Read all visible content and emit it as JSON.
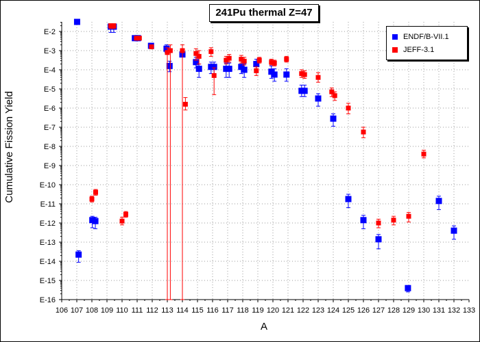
{
  "chart_data": {
    "type": "scatter",
    "title": "241Pu thermal Z=47",
    "xlabel": "A",
    "ylabel": "Cumulative Fission Yield",
    "xlim": [
      106,
      133
    ],
    "ylim_log10": [
      -16,
      -1.5
    ],
    "y_scale": "log",
    "grid": true,
    "legend_position": "top-right",
    "x_ticks": [
      "106",
      "107",
      "108",
      "109",
      "110",
      "111",
      "112",
      "113",
      "114",
      "115",
      "116",
      "117",
      "118",
      "119",
      "120",
      "121",
      "122",
      "123",
      "124",
      "125",
      "126",
      "127",
      "128",
      "129",
      "130",
      "131",
      "132",
      "133"
    ],
    "y_ticks": [
      "E-2",
      "E-3",
      "E-4",
      "E-5",
      "E-6",
      "E-7",
      "E-8",
      "E-9",
      "E-10",
      "E-11",
      "E-12",
      "E-13",
      "E-14",
      "E-15",
      "E-16"
    ],
    "series": [
      {
        "name": "ENDF/B-VII.1",
        "color": "#0000ff",
        "points": [
          {
            "x": 107.02,
            "y": -1.45,
            "lo": -1.45,
            "hi": -1.45
          },
          {
            "x": 107.12,
            "y": -13.65,
            "lo": -14.05,
            "hi": -13.45
          },
          {
            "x": 108.03,
            "y": -11.85,
            "lo": -12.25,
            "hi": -11.65
          },
          {
            "x": 108.23,
            "y": -11.9,
            "lo": -12.3,
            "hi": -11.7
          },
          {
            "x": 109.25,
            "y": -1.75,
            "lo": -2.05,
            "hi": -1.65
          },
          {
            "x": 109.45,
            "y": -1.75,
            "lo": -2.05,
            "hi": -1.65
          },
          {
            "x": 110.85,
            "y": -2.35,
            "lo": -2.45,
            "hi": -2.25
          },
          {
            "x": 111.05,
            "y": -2.35,
            "lo": -2.45,
            "hi": -2.25
          },
          {
            "x": 111.92,
            "y": -2.75,
            "lo": -2.85,
            "hi": -2.65
          },
          {
            "x": 112.95,
            "y": -2.9,
            "lo": -3.1,
            "hi": -2.7
          },
          {
            "x": 113.15,
            "y": -3.8,
            "lo": -4.1,
            "hi": -3.55
          },
          {
            "x": 114.0,
            "y": -3.2,
            "lo": -16,
            "hi": -2.9
          },
          {
            "x": 114.9,
            "y": -3.6,
            "lo": -3.9,
            "hi": -3.35
          },
          {
            "x": 115.1,
            "y": -3.95,
            "lo": -4.4,
            "hi": -3.7
          },
          {
            "x": 115.9,
            "y": -3.85,
            "lo": -4.2,
            "hi": -3.6
          },
          {
            "x": 116.1,
            "y": -3.85,
            "lo": -4.2,
            "hi": -3.6
          },
          {
            "x": 116.9,
            "y": -3.95,
            "lo": -4.4,
            "hi": -3.65
          },
          {
            "x": 117.1,
            "y": -3.95,
            "lo": -4.4,
            "hi": -3.65
          },
          {
            "x": 117.9,
            "y": -3.85,
            "lo": -4.2,
            "hi": -3.55
          },
          {
            "x": 118.1,
            "y": -4.0,
            "lo": -4.4,
            "hi": -3.7
          },
          {
            "x": 118.9,
            "y": -3.7,
            "lo": -4.0,
            "hi": -3.45
          },
          {
            "x": 119.9,
            "y": -4.1,
            "lo": -4.45,
            "hi": -3.8
          },
          {
            "x": 120.1,
            "y": -4.25,
            "lo": -4.6,
            "hi": -3.95
          },
          {
            "x": 120.9,
            "y": -4.25,
            "lo": -4.6,
            "hi": -3.95
          },
          {
            "x": 121.9,
            "y": -5.1,
            "lo": -5.4,
            "hi": -4.8
          },
          {
            "x": 122.1,
            "y": -5.1,
            "lo": -5.4,
            "hi": -4.8
          },
          {
            "x": 123.0,
            "y": -5.5,
            "lo": -5.9,
            "hi": -5.25
          },
          {
            "x": 124.0,
            "y": -6.55,
            "lo": -6.95,
            "hi": -6.3
          },
          {
            "x": 125.0,
            "y": -10.75,
            "lo": -11.2,
            "hi": -10.5
          },
          {
            "x": 126.0,
            "y": -11.85,
            "lo": -12.3,
            "hi": -11.6
          },
          {
            "x": 127.0,
            "y": -12.85,
            "lo": -13.35,
            "hi": -12.6
          },
          {
            "x": 128.95,
            "y": -15.4,
            "lo": -15.6,
            "hi": -15.3
          },
          {
            "x": 131.0,
            "y": -10.85,
            "lo": -11.3,
            "hi": -10.6
          },
          {
            "x": 132.0,
            "y": -12.4,
            "lo": -12.85,
            "hi": -12.15
          }
        ]
      },
      {
        "name": "JEFF-3.1",
        "color": "#ff0000",
        "points": [
          {
            "x": 108.0,
            "y": -10.75,
            "lo": -10.9,
            "hi": -10.6
          },
          {
            "x": 108.25,
            "y": -10.4,
            "lo": -10.55,
            "hi": -10.25
          },
          {
            "x": 109.25,
            "y": -1.7,
            "lo": -1.85,
            "hi": -1.6
          },
          {
            "x": 109.45,
            "y": -1.7,
            "lo": -1.85,
            "hi": -1.6
          },
          {
            "x": 110.0,
            "y": -11.9,
            "lo": -12.1,
            "hi": -11.7
          },
          {
            "x": 110.25,
            "y": -11.55,
            "lo": -11.7,
            "hi": -11.4
          },
          {
            "x": 110.95,
            "y": -2.35,
            "lo": -2.45,
            "hi": -2.25
          },
          {
            "x": 111.15,
            "y": -2.35,
            "lo": -2.45,
            "hi": -2.25
          },
          {
            "x": 111.95,
            "y": -2.8,
            "lo": -2.9,
            "hi": -2.7
          },
          {
            "x": 113.0,
            "y": -3.1,
            "lo": -16,
            "hi": -2.85
          },
          {
            "x": 113.2,
            "y": -3.0,
            "lo": -16,
            "hi": -2.7
          },
          {
            "x": 114.0,
            "y": -3.0,
            "lo": -16,
            "hi": -2.7
          },
          {
            "x": 114.2,
            "y": -5.8,
            "lo": -6.1,
            "hi": -5.45
          },
          {
            "x": 114.9,
            "y": -3.15,
            "lo": -3.5,
            "hi": -2.9
          },
          {
            "x": 115.1,
            "y": -3.3,
            "lo": -3.7,
            "hi": -3.0
          },
          {
            "x": 115.9,
            "y": -3.05,
            "lo": -3.3,
            "hi": -2.85
          },
          {
            "x": 116.1,
            "y": -4.3,
            "lo": -5.3,
            "hi": -3.9
          },
          {
            "x": 116.9,
            "y": -3.5,
            "lo": -3.7,
            "hi": -3.3
          },
          {
            "x": 117.1,
            "y": -3.4,
            "lo": -3.6,
            "hi": -3.2
          },
          {
            "x": 117.9,
            "y": -3.45,
            "lo": -3.65,
            "hi": -3.25
          },
          {
            "x": 118.1,
            "y": -3.55,
            "lo": -3.75,
            "hi": -3.35
          },
          {
            "x": 118.9,
            "y": -4.05,
            "lo": -4.3,
            "hi": -3.85
          },
          {
            "x": 119.1,
            "y": -3.5,
            "lo": -3.65,
            "hi": -3.35
          },
          {
            "x": 119.9,
            "y": -3.6,
            "lo": -3.75,
            "hi": -3.45
          },
          {
            "x": 120.1,
            "y": -3.65,
            "lo": -3.8,
            "hi": -3.5
          },
          {
            "x": 120.9,
            "y": -3.45,
            "lo": -3.6,
            "hi": -3.3
          },
          {
            "x": 121.9,
            "y": -4.2,
            "lo": -4.4,
            "hi": -4.0
          },
          {
            "x": 122.1,
            "y": -4.25,
            "lo": -4.45,
            "hi": -4.05
          },
          {
            "x": 123.0,
            "y": -4.4,
            "lo": -4.65,
            "hi": -4.15
          },
          {
            "x": 123.9,
            "y": -5.15,
            "lo": -5.4,
            "hi": -4.95
          },
          {
            "x": 124.1,
            "y": -5.35,
            "lo": -5.6,
            "hi": -5.15
          },
          {
            "x": 125.0,
            "y": -6.0,
            "lo": -6.3,
            "hi": -5.75
          },
          {
            "x": 126.0,
            "y": -7.25,
            "lo": -7.55,
            "hi": -7.0
          },
          {
            "x": 127.0,
            "y": -12.0,
            "lo": -12.25,
            "hi": -11.8
          },
          {
            "x": 128.0,
            "y": -11.85,
            "lo": -12.1,
            "hi": -11.65
          },
          {
            "x": 129.0,
            "y": -11.65,
            "lo": -11.95,
            "hi": -11.45
          },
          {
            "x": 130.0,
            "y": -8.4,
            "lo": -8.6,
            "hi": -8.2
          }
        ]
      }
    ]
  }
}
